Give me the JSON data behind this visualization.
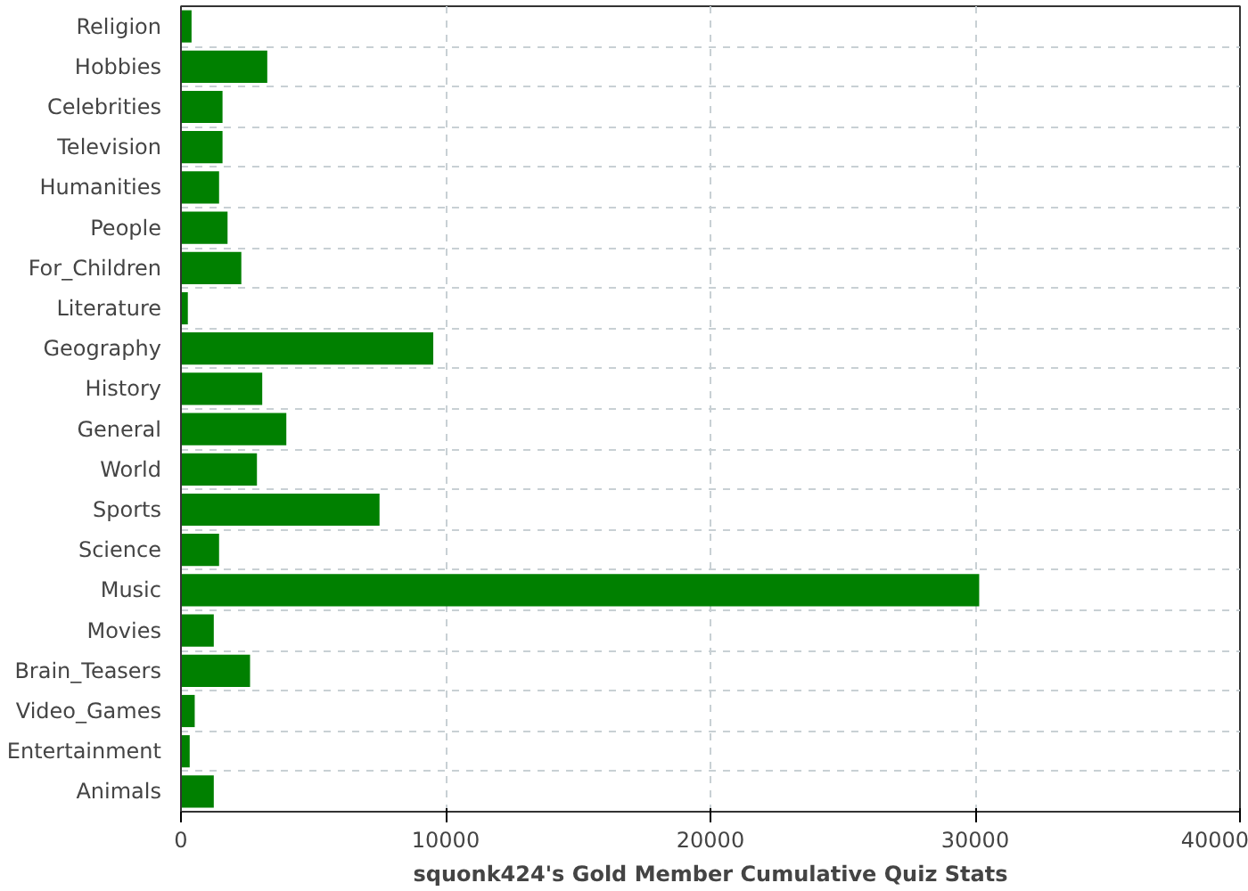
{
  "chart_data": {
    "type": "bar",
    "orientation": "horizontal",
    "xlabel": "squonk424's Gold Member Cumulative Quiz Stats",
    "categories": [
      "Religion",
      "Hobbies",
      "Celebrities",
      "Television",
      "Humanities",
      "People",
      "For_Children",
      "Literature",
      "Geography",
      "History",
      "General",
      "World",
      "Sports",
      "Science",
      "Music",
      "Movies",
      "Brain_Teasers",
      "Video_Games",
      "Entertainment",
      "Animals"
    ],
    "values": [
      400,
      3260,
      1570,
      1570,
      1440,
      1760,
      2280,
      260,
      9530,
      3070,
      3980,
      2870,
      7500,
      1440,
      30150,
      1240,
      2610,
      520,
      330,
      1240
    ],
    "color": "#008000",
    "xlim": [
      0,
      40000
    ],
    "xticks": [
      0,
      10000,
      20000,
      30000,
      40000
    ],
    "grid": true
  }
}
